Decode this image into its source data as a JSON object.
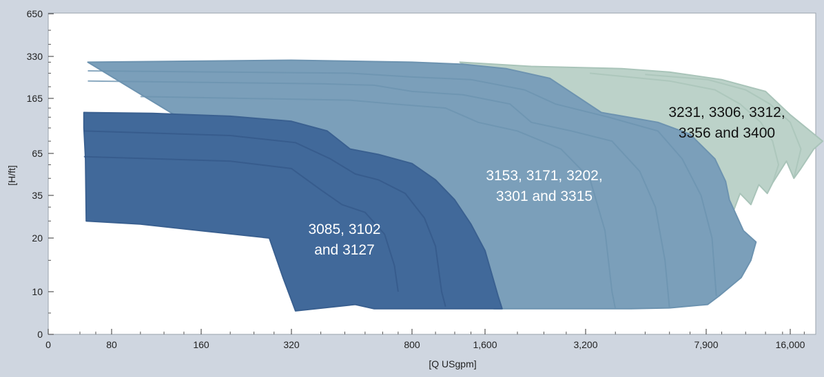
{
  "chart_data": {
    "type": "area",
    "xlabel": "[Q USgpm]",
    "ylabel": "[H/ft]",
    "x_ticks": [
      "0",
      "80",
      "160",
      "320",
      "800",
      "1,600",
      "3,200",
      "7,900",
      "16,000"
    ],
    "y_ticks": [
      "0",
      "10",
      "20",
      "35",
      "65",
      "165",
      "330",
      "650"
    ],
    "grid": false,
    "colors": {
      "small": "#41699a",
      "medium": "#7b9fba",
      "large": "#bcd2c9",
      "outline_small": "#3a6090",
      "outline_medium": "#6d93b0",
      "outline_large": "#a9c4b9"
    },
    "regions": [
      {
        "label": "3231, 3306, 3312,\n3356 and 3400",
        "label_lines": [
          "3231, 3306, 3312,",
          "3356 and 3400"
        ],
        "label_color": "#111111",
        "fill": "large",
        "outline": [
          [
            1260,
            300
          ],
          [
            2200,
            280
          ],
          [
            4200,
            270
          ],
          [
            6000,
            255
          ],
          [
            9000,
            225
          ],
          [
            13000,
            185
          ],
          [
            16000,
            125
          ],
          [
            21000,
            80
          ],
          [
            19500,
            70
          ],
          [
            17500,
            52
          ],
          [
            16500,
            45
          ],
          [
            15500,
            58
          ],
          [
            13800,
            42
          ],
          [
            13200,
            36
          ],
          [
            12300,
            41
          ],
          [
            11500,
            31
          ],
          [
            10500,
            36
          ],
          [
            9800,
            27
          ],
          [
            8500,
            25
          ]
        ]
      },
      {
        "label": "3153, 3171, 3202,\n3301 and 3315",
        "label_lines": [
          "3153, 3171, 3202,",
          "3301 and 3315"
        ],
        "label_color": "#ffffff",
        "fill": "medium",
        "outline": [
          [
            50,
            300
          ],
          [
            320,
            310
          ],
          [
            800,
            300
          ],
          [
            1300,
            290
          ],
          [
            1850,
            270
          ],
          [
            2500,
            230
          ],
          [
            3600,
            130
          ],
          [
            5500,
            110
          ],
          [
            7000,
            90
          ],
          [
            8500,
            60
          ],
          [
            9300,
            43
          ],
          [
            9600,
            33
          ],
          [
            10800,
            22
          ],
          [
            12000,
            19
          ],
          [
            11500,
            15
          ],
          [
            10600,
            12
          ],
          [
            8800,
            9
          ],
          [
            8000,
            7
          ],
          [
            6000,
            6.2
          ],
          [
            4500,
            6
          ],
          [
            2200,
            6
          ],
          [
            1700,
            6
          ]
        ]
      },
      {
        "label": "3085, 3102\nand 3127",
        "label_lines": [
          "3085, 3102",
          "and 3127"
        ],
        "label_color": "#ffffff",
        "fill": "small",
        "outline": [
          [
            45,
            130
          ],
          [
            110,
            128
          ],
          [
            200,
            122
          ],
          [
            320,
            112
          ],
          [
            420,
            95
          ],
          [
            500,
            70
          ],
          [
            620,
            64
          ],
          [
            800,
            56
          ],
          [
            1000,
            44
          ],
          [
            1200,
            33
          ],
          [
            1400,
            24
          ],
          [
            1600,
            17
          ],
          [
            1750,
            9
          ],
          [
            1800,
            6
          ],
          [
            1100,
            6
          ],
          [
            600,
            6
          ],
          [
            520,
            7
          ],
          [
            330,
            5.5
          ],
          [
            300,
            12
          ],
          [
            270,
            20
          ],
          [
            160,
            22
          ],
          [
            100,
            24
          ],
          [
            48,
            25
          ],
          [
            47,
            60
          ],
          [
            45,
            100
          ]
        ]
      }
    ]
  }
}
